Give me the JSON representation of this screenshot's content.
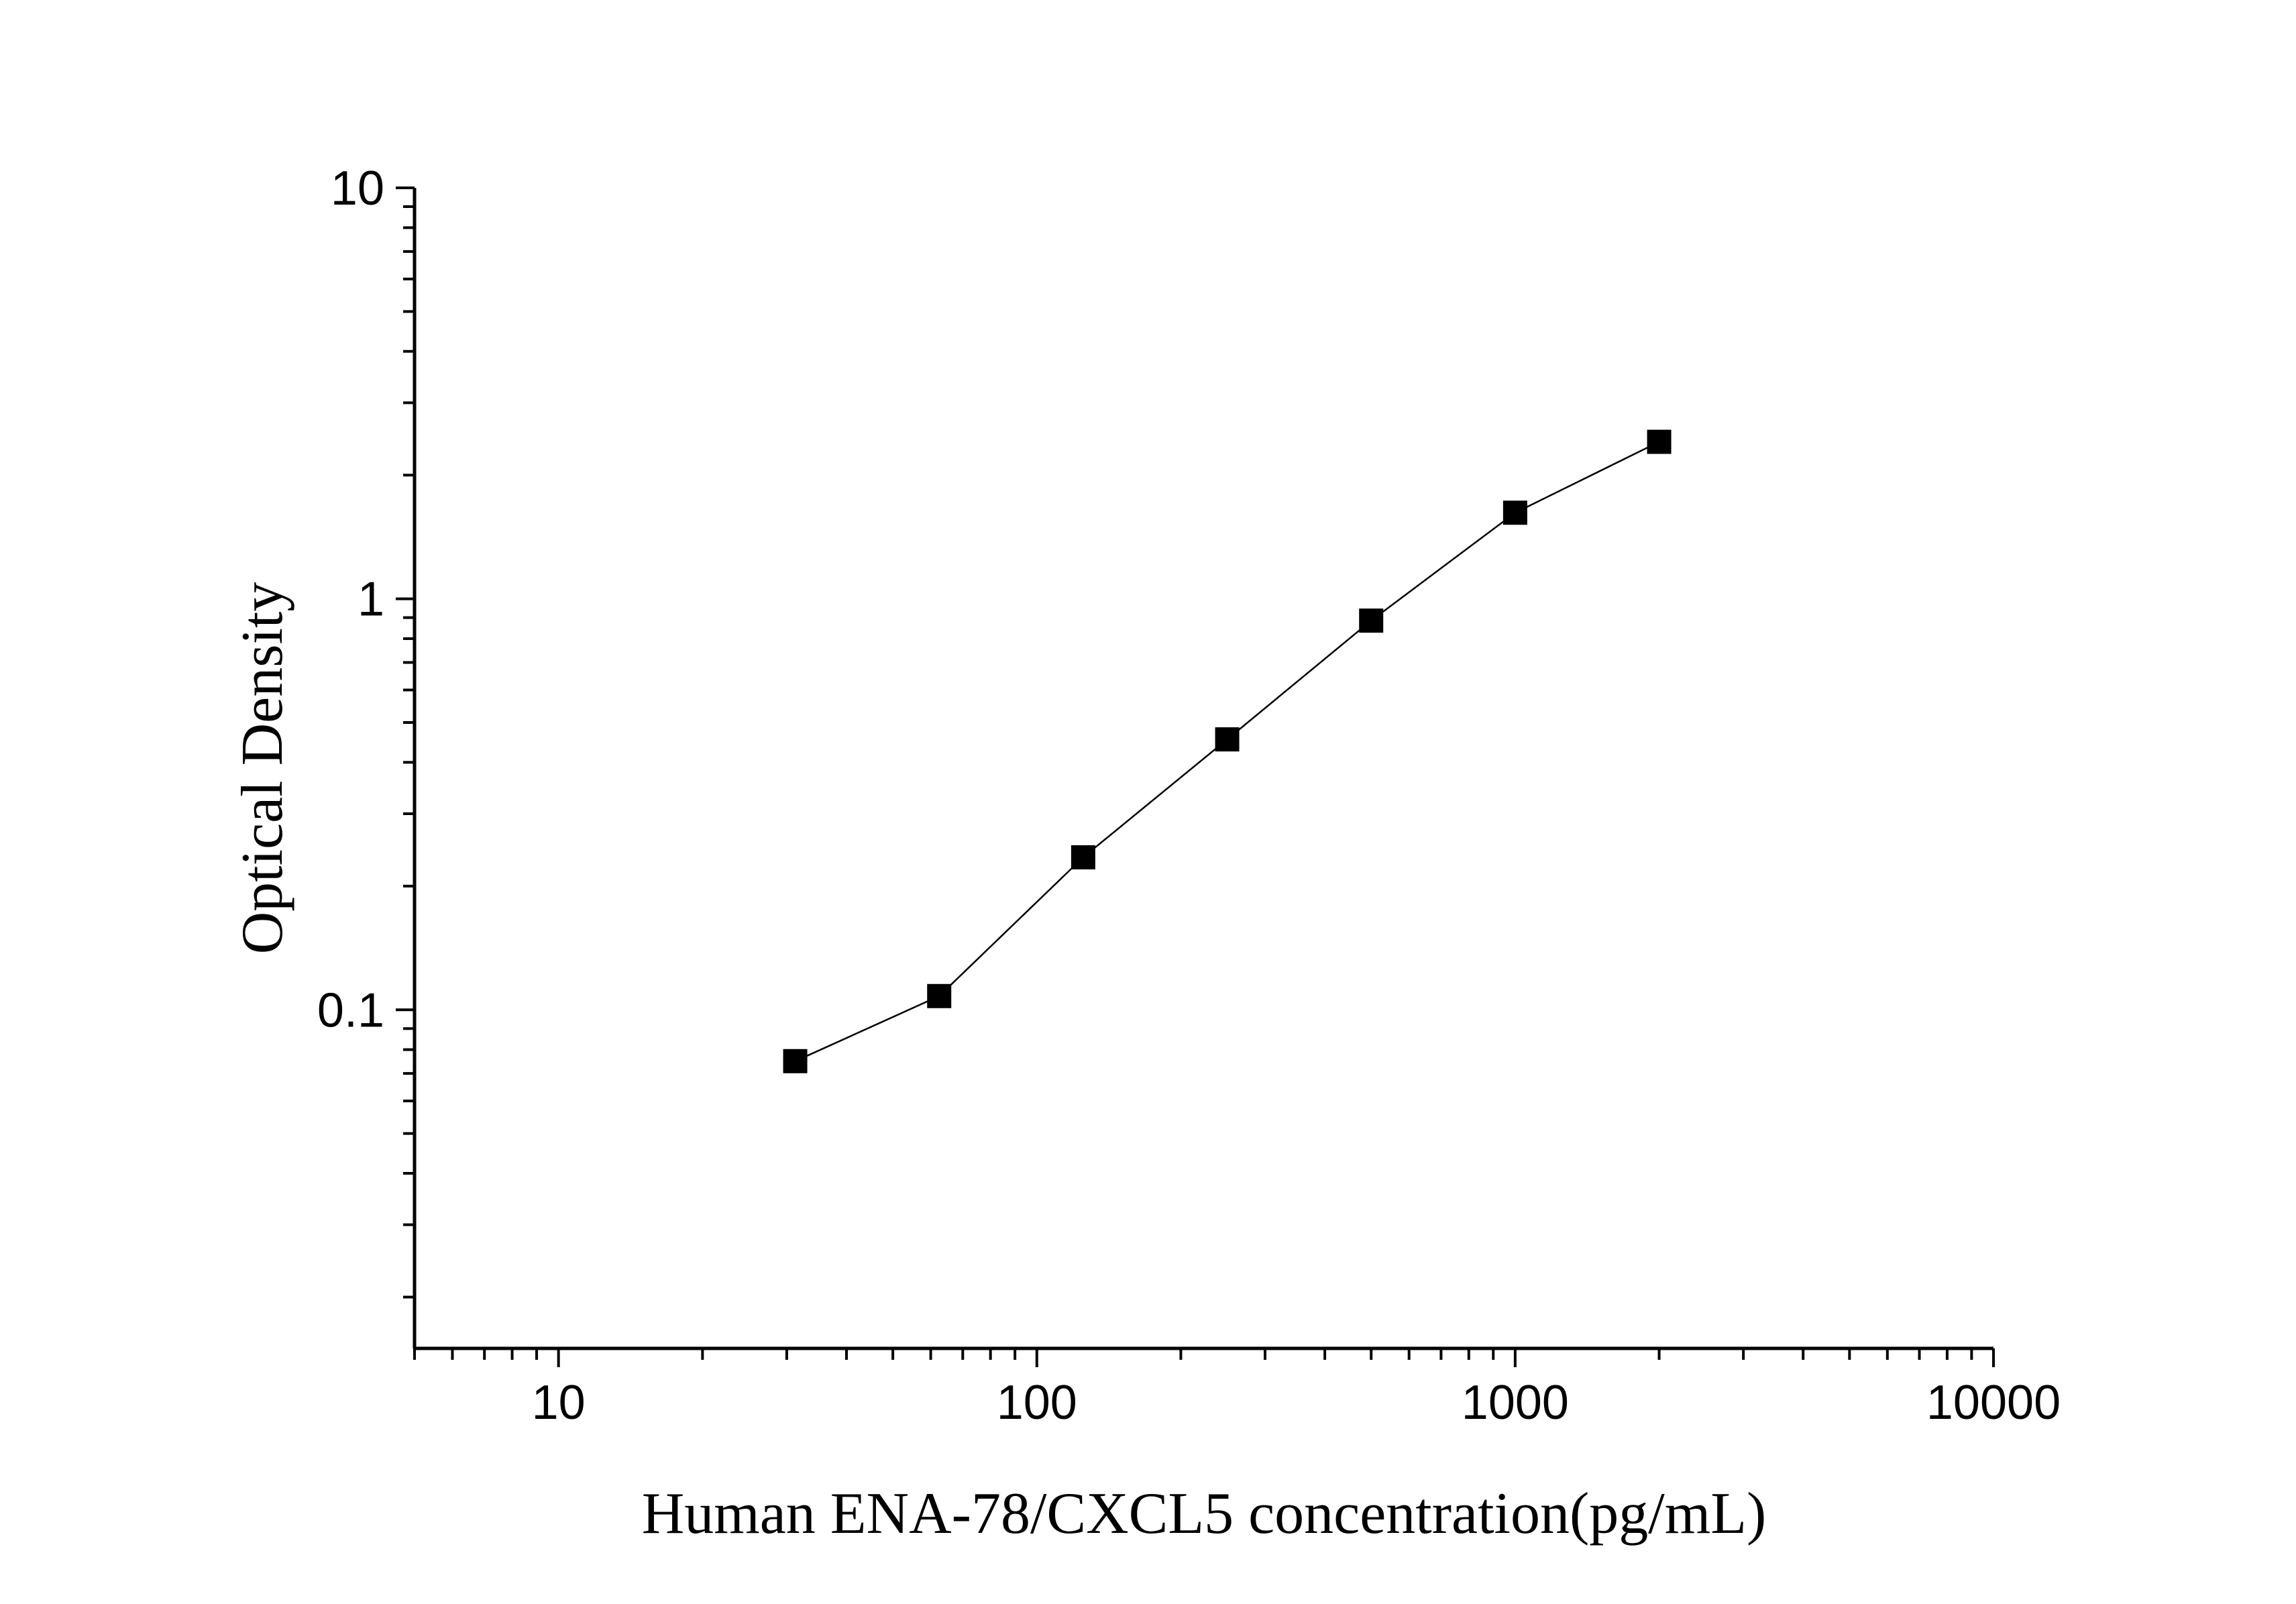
{
  "chart_data": {
    "type": "scatter",
    "xlabel": "Human ENA-78/CXCL5 concentration(pg/mL)",
    "ylabel": "Optical Density",
    "x_scale": "log",
    "y_scale": "log",
    "xlim": [
      5,
      10000
    ],
    "ylim": [
      0.015,
      10
    ],
    "x_ticks": [
      {
        "value": 10,
        "label": "10"
      },
      {
        "value": 100,
        "label": "100"
      },
      {
        "value": 1000,
        "label": "1000"
      },
      {
        "value": 10000,
        "label": "10000"
      }
    ],
    "y_ticks": [
      {
        "value": 0.1,
        "label": "0.1"
      },
      {
        "value": 1,
        "label": "1"
      },
      {
        "value": 10,
        "label": "10"
      }
    ],
    "grid": false,
    "series": [
      {
        "marker": "square",
        "connected": true,
        "color": "#000000",
        "points": [
          {
            "x": 31.25,
            "y": 0.075
          },
          {
            "x": 62.5,
            "y": 0.108
          },
          {
            "x": 125,
            "y": 0.235
          },
          {
            "x": 250,
            "y": 0.455
          },
          {
            "x": 500,
            "y": 0.885
          },
          {
            "x": 1000,
            "y": 1.62
          },
          {
            "x": 2000,
            "y": 2.41
          }
        ]
      }
    ]
  }
}
